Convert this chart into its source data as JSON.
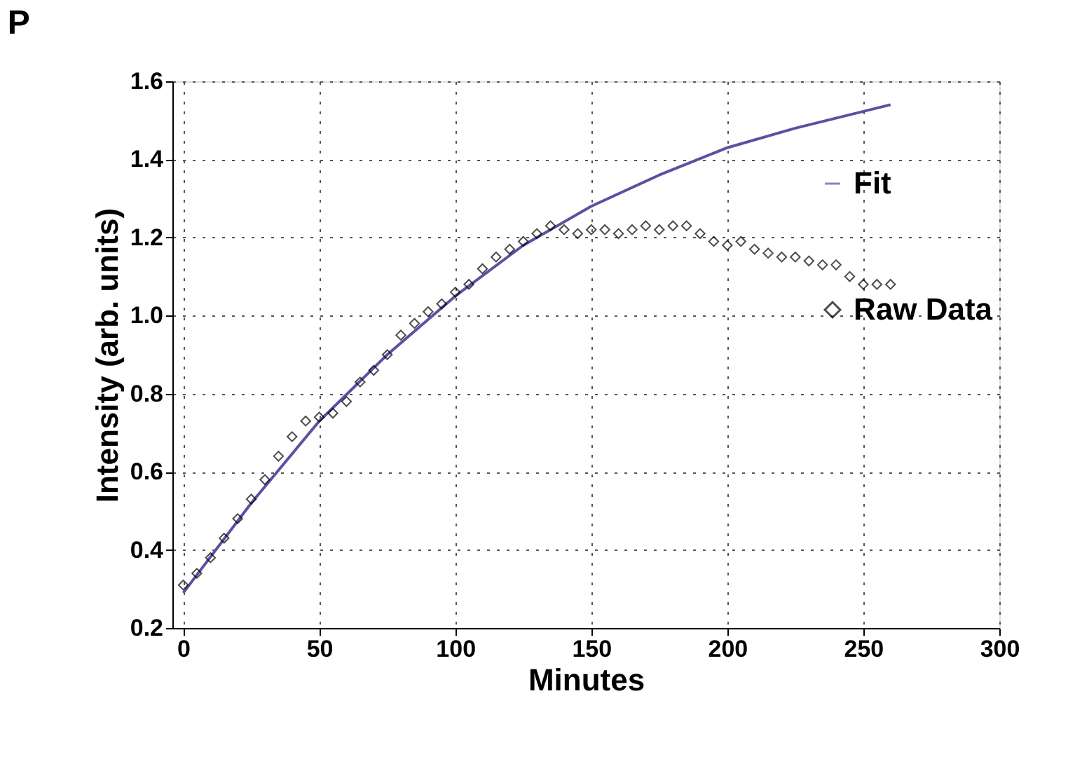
{
  "chart_data": {
    "type": "scatter",
    "title": "P",
    "xlabel": "Minutes",
    "ylabel": "Intensity (arb. units)",
    "xlim": [
      -4,
      300
    ],
    "ylim": [
      0.2,
      1.6
    ],
    "xticks": [
      0,
      50,
      100,
      150,
      200,
      250,
      300
    ],
    "yticks": [
      0.2,
      0.4,
      0.6,
      0.8,
      {
        "value": 1,
        "label": "1.0"
      },
      1.2,
      1.4,
      1.6
    ],
    "grid": true,
    "legend": "right",
    "series": [
      {
        "name": "Fit",
        "type": "line",
        "color": "#5a52a0",
        "line_style": "solid",
        "x": [
          0,
          25,
          50,
          75,
          100,
          125,
          150,
          175,
          200,
          225,
          260
        ],
        "values": [
          0.29,
          0.52,
          0.73,
          0.9,
          1.05,
          1.18,
          1.28,
          1.36,
          1.43,
          1.48,
          1.54
        ]
      },
      {
        "name": "Raw Data",
        "color": "#000000",
        "marker": "diamond",
        "x": [
          0,
          5,
          10,
          15,
          20,
          25,
          30,
          35,
          40,
          45,
          50,
          55,
          60,
          65,
          70,
          75,
          80,
          85,
          90,
          95,
          100,
          105,
          110,
          115,
          120,
          125,
          130,
          135,
          140,
          145,
          150,
          155,
          160,
          165,
          170,
          175,
          180,
          185,
          190,
          195,
          200,
          205,
          210,
          215,
          220,
          225,
          230,
          235,
          240,
          245,
          250,
          255,
          260
        ],
        "values": [
          0.31,
          0.34,
          0.38,
          0.43,
          0.48,
          0.53,
          0.58,
          0.64,
          0.69,
          0.73,
          0.74,
          0.75,
          0.78,
          0.83,
          0.86,
          0.9,
          0.95,
          0.98,
          1.01,
          1.03,
          1.06,
          1.08,
          1.12,
          1.15,
          1.17,
          1.19,
          1.21,
          1.23,
          1.22,
          1.21,
          1.22,
          1.22,
          1.21,
          1.22,
          1.23,
          1.22,
          1.23,
          1.23,
          1.21,
          1.19,
          1.18,
          1.19,
          1.17,
          1.16,
          1.15,
          1.15,
          1.14,
          1.13,
          1.13,
          1.1,
          1.08,
          1.08,
          1.08
        ]
      }
    ]
  }
}
